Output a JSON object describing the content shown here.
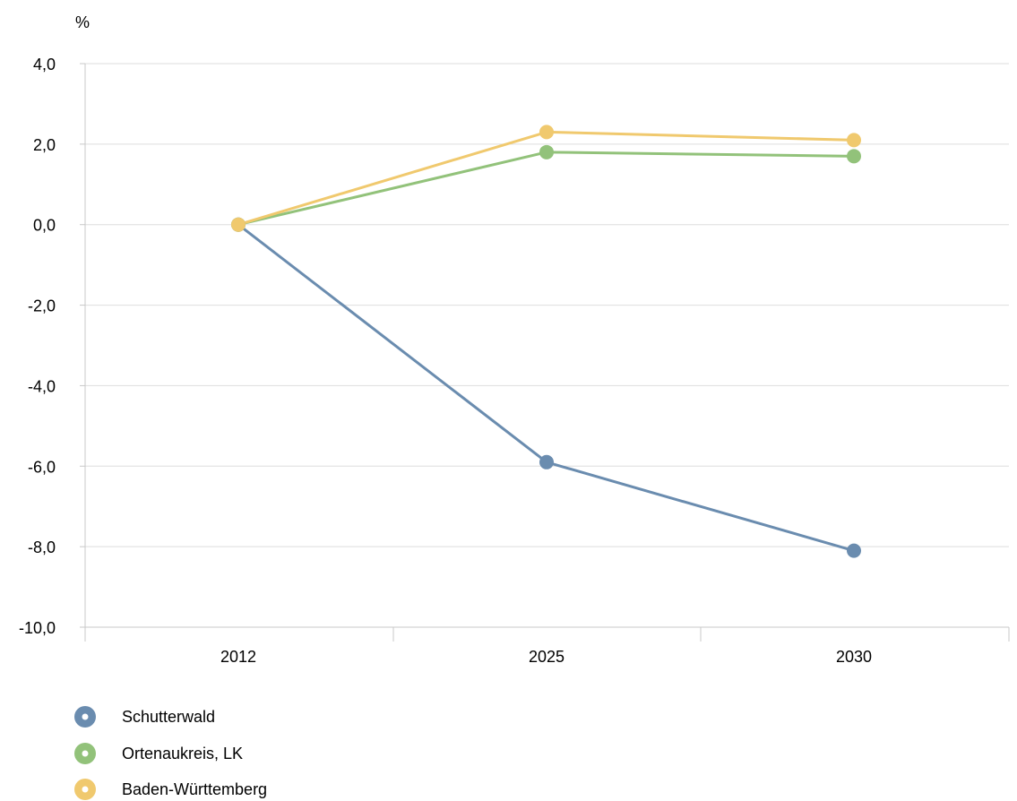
{
  "chart_data": {
    "type": "line",
    "y_unit": "%",
    "categories": [
      "2012",
      "2025",
      "2030"
    ],
    "ylim": [
      -10,
      4
    ],
    "y_ticks": [
      4,
      2,
      0,
      -2,
      -4,
      -6,
      -8,
      -10
    ],
    "y_tick_labels": [
      "4,0",
      "2,0",
      "0,0",
      "-2,0",
      "-4,0",
      "-6,0",
      "-8,0",
      "-10,0"
    ],
    "grid": true,
    "legend_position": "bottom-left",
    "series": [
      {
        "name": "Schutterwald",
        "color": "#6a8caf",
        "values": [
          0.0,
          -5.9,
          -8.1
        ]
      },
      {
        "name": "Ortenaukreis, LK",
        "color": "#92c27a",
        "values": [
          0.0,
          1.8,
          1.7
        ]
      },
      {
        "name": "Baden-Württemberg",
        "color": "#f0c96e",
        "values": [
          0.0,
          2.3,
          2.1
        ]
      }
    ]
  }
}
